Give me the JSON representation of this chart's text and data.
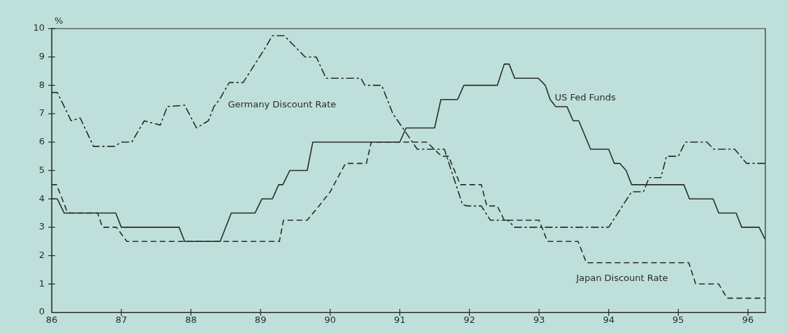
{
  "chart_data": {
    "type": "line",
    "ylabel": "%",
    "xlim": [
      86,
      96.25
    ],
    "ylim": [
      0,
      10
    ],
    "xticks": [
      86,
      87,
      88,
      89,
      90,
      91,
      92,
      93,
      94,
      95,
      96
    ],
    "yticks": [
      0,
      1,
      2,
      3,
      4,
      5,
      6,
      7,
      8,
      9,
      10
    ],
    "grid": false,
    "legend": false,
    "marker": "none",
    "series": [
      {
        "name": "US Fed Funds",
        "color": "#2b2b2b",
        "line_style": "solid",
        "x": [
          86,
          86.08,
          86.18,
          86.92,
          87,
          87.83,
          87.91,
          88.42,
          88.58,
          88.92,
          89.02,
          89.17,
          89.26,
          89.32,
          89.42,
          89.67,
          89.75,
          91,
          91.09,
          91.5,
          91.59,
          91.83,
          91.92,
          92.4,
          92.5,
          92.57,
          92.65,
          92.99,
          93.09,
          93.16,
          93.24,
          93.4,
          93.49,
          93.57,
          93.74,
          94,
          94.08,
          94.16,
          94.25,
          94.33,
          95.08,
          95.16,
          95.5,
          95.58,
          95.83,
          95.91,
          96.16,
          96.24
        ],
        "values": [
          4,
          4,
          3.5,
          3.5,
          3,
          3,
          2.5,
          2.5,
          3.5,
          3.5,
          4,
          4,
          4.5,
          4.5,
          5,
          5,
          6,
          6,
          6.5,
          6.5,
          7.5,
          7.5,
          8,
          8,
          8.75,
          8.75,
          8.25,
          8.25,
          8,
          7.5,
          7.25,
          7.25,
          6.75,
          6.75,
          5.75,
          5.75,
          5.25,
          5.25,
          5,
          4.5,
          4.5,
          4,
          4,
          3.5,
          3.5,
          3,
          3,
          2.6
        ]
      },
      {
        "name": "Germany Discount Rate",
        "color": "#2b2b2b",
        "line_style": "dashdot",
        "x": [
          86,
          86.08,
          86.28,
          86.41,
          86.6,
          86.9,
          87,
          87.15,
          87.33,
          87.56,
          87.66,
          87.91,
          88.08,
          88.25,
          88.33,
          88.41,
          88.55,
          88.75,
          89.05,
          89.17,
          89.34,
          89.64,
          89.8,
          89.94,
          90.44,
          90.5,
          90.74,
          90.9,
          91.07,
          91.25,
          91.64,
          91.9,
          91.97,
          92.17,
          92.3,
          92.55,
          92.65,
          94,
          94.33,
          94.5,
          94.58,
          94.75,
          94.83,
          95,
          95.1,
          95.41,
          95.51,
          95.81,
          95.98,
          96.25
        ],
        "values": [
          7.75,
          7.75,
          6.75,
          6.85,
          5.85,
          5.85,
          6,
          6,
          6.75,
          6.6,
          7.25,
          7.3,
          6.5,
          6.75,
          7.25,
          7.5,
          8.1,
          8.1,
          9.25,
          9.75,
          9.75,
          9,
          9,
          8.25,
          8.25,
          8,
          8,
          7,
          6.4,
          5.75,
          5.75,
          3.8,
          3.75,
          3.75,
          3.25,
          3.25,
          3,
          3,
          4.25,
          4.25,
          4.75,
          4.75,
          5.5,
          5.5,
          6,
          6,
          5.75,
          5.75,
          5.25,
          5.25
        ]
      },
      {
        "name": "Japan Discount Rate",
        "color": "#2b2b2b",
        "line_style": "dashed",
        "x": [
          86,
          86.07,
          86.23,
          86.66,
          86.73,
          86.93,
          87.08,
          89.27,
          89.33,
          89.67,
          89.84,
          90,
          90.22,
          90.52,
          90.59,
          91.39,
          91.6,
          91.7,
          91.87,
          92.17,
          92.25,
          92.4,
          92.5,
          93,
          93.12,
          93.56,
          93.68,
          95.15,
          95.25,
          95.58,
          95.7,
          96.25
        ],
        "values": [
          4.5,
          4.5,
          3.5,
          3.5,
          3,
          3,
          2.5,
          2.5,
          3.25,
          3.25,
          3.75,
          4.25,
          5.25,
          5.25,
          6,
          6,
          5.5,
          5.5,
          4.5,
          4.5,
          3.75,
          3.75,
          3.25,
          3.25,
          2.5,
          2.5,
          1.75,
          1.75,
          1,
          1,
          0.5,
          0.5
        ]
      }
    ]
  }
}
